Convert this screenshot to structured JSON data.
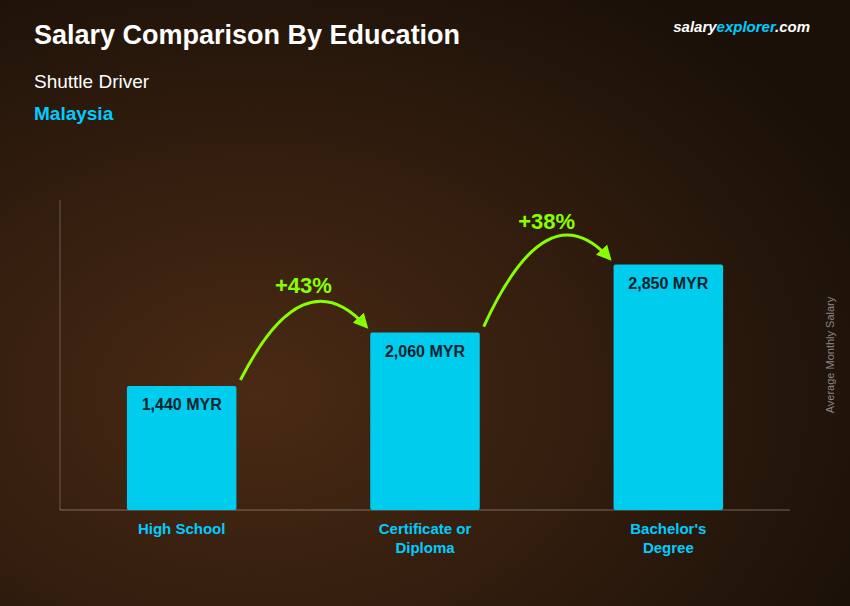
{
  "chart_data": {
    "type": "bar",
    "title": "Salary Comparison By Education",
    "subtitle": [
      "Shuttle Driver",
      "Malaysia"
    ],
    "source": [
      "salary",
      "explorer",
      ".com"
    ],
    "y_label": "Average Monthly Salary",
    "categories": [
      "High School",
      "Certificate or\nDiploma",
      "Bachelor's\nDegree"
    ],
    "values": [
      1440,
      2060,
      2850
    ],
    "value_labels": [
      "1,440 MYR",
      "2,060 MYR",
      "2,850 MYR"
    ],
    "annotations": [
      "+43%",
      "+38%"
    ],
    "color": "#00ccee",
    "ylim": [
      0,
      3600
    ],
    "tick_labels": false,
    "data_labels": true,
    "grid": false
  }
}
